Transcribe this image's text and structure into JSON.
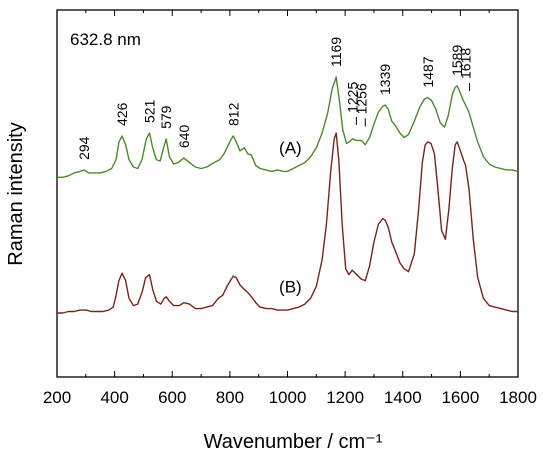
{
  "chart_data": {
    "type": "line",
    "corner_label": "632.8 nm",
    "xlabel": "Wavenumber / cm⁻¹",
    "ylabel": "Raman intensity",
    "xlim": [
      200,
      1800
    ],
    "x_ticks": [
      200,
      400,
      600,
      800,
      1000,
      1200,
      1400,
      1600,
      1800
    ],
    "y_ticks_shown": false,
    "grid": false,
    "series": [
      {
        "name": "(A)",
        "color": "#4a8a2a",
        "points": [
          [
            200,
            0.66
          ],
          [
            220,
            0.66
          ],
          [
            240,
            0.665
          ],
          [
            260,
            0.675
          ],
          [
            280,
            0.68
          ],
          [
            294,
            0.685
          ],
          [
            310,
            0.675
          ],
          [
            330,
            0.675
          ],
          [
            350,
            0.675
          ],
          [
            370,
            0.68
          ],
          [
            390,
            0.69
          ],
          [
            405,
            0.72
          ],
          [
            415,
            0.78
          ],
          [
            426,
            0.8
          ],
          [
            438,
            0.77
          ],
          [
            450,
            0.72
          ],
          [
            465,
            0.695
          ],
          [
            480,
            0.69
          ],
          [
            495,
            0.72
          ],
          [
            510,
            0.79
          ],
          [
            521,
            0.81
          ],
          [
            532,
            0.76
          ],
          [
            545,
            0.72
          ],
          [
            558,
            0.715
          ],
          [
            570,
            0.76
          ],
          [
            579,
            0.79
          ],
          [
            590,
            0.73
          ],
          [
            605,
            0.705
          ],
          [
            620,
            0.71
          ],
          [
            640,
            0.725
          ],
          [
            660,
            0.71
          ],
          [
            680,
            0.695
          ],
          [
            700,
            0.69
          ],
          [
            720,
            0.695
          ],
          [
            745,
            0.71
          ],
          [
            765,
            0.72
          ],
          [
            780,
            0.74
          ],
          [
            795,
            0.77
          ],
          [
            805,
            0.79
          ],
          [
            812,
            0.8
          ],
          [
            822,
            0.78
          ],
          [
            835,
            0.75
          ],
          [
            850,
            0.76
          ],
          [
            862,
            0.74
          ],
          [
            875,
            0.735
          ],
          [
            890,
            0.7
          ],
          [
            905,
            0.69
          ],
          [
            925,
            0.685
          ],
          [
            945,
            0.68
          ],
          [
            965,
            0.685
          ],
          [
            985,
            0.68
          ],
          [
            1000,
            0.68
          ],
          [
            1020,
            0.69
          ],
          [
            1040,
            0.7
          ],
          [
            1060,
            0.71
          ],
          [
            1080,
            0.73
          ],
          [
            1100,
            0.76
          ],
          [
            1120,
            0.81
          ],
          [
            1140,
            0.88
          ],
          [
            1155,
            0.96
          ],
          [
            1169,
            1.0
          ],
          [
            1180,
            0.92
          ],
          [
            1192,
            0.82
          ],
          [
            1205,
            0.775
          ],
          [
            1215,
            0.78
          ],
          [
            1225,
            0.79
          ],
          [
            1240,
            0.785
          ],
          [
            1256,
            0.785
          ],
          [
            1270,
            0.77
          ],
          [
            1285,
            0.795
          ],
          [
            1300,
            0.84
          ],
          [
            1315,
            0.88
          ],
          [
            1330,
            0.9
          ],
          [
            1339,
            0.905
          ],
          [
            1350,
            0.89
          ],
          [
            1362,
            0.85
          ],
          [
            1375,
            0.835
          ],
          [
            1390,
            0.81
          ],
          [
            1405,
            0.795
          ],
          [
            1420,
            0.805
          ],
          [
            1440,
            0.85
          ],
          [
            1460,
            0.9
          ],
          [
            1475,
            0.925
          ],
          [
            1487,
            0.93
          ],
          [
            1500,
            0.92
          ],
          [
            1515,
            0.89
          ],
          [
            1530,
            0.845
          ],
          [
            1545,
            0.83
          ],
          [
            1558,
            0.87
          ],
          [
            1572,
            0.94
          ],
          [
            1582,
            0.965
          ],
          [
            1589,
            0.97
          ],
          [
            1600,
            0.945
          ],
          [
            1610,
            0.92
          ],
          [
            1618,
            0.905
          ],
          [
            1630,
            0.88
          ],
          [
            1645,
            0.83
          ],
          [
            1660,
            0.78
          ],
          [
            1680,
            0.73
          ],
          [
            1700,
            0.705
          ],
          [
            1720,
            0.695
          ],
          [
            1740,
            0.69
          ],
          [
            1760,
            0.685
          ],
          [
            1780,
            0.685
          ],
          [
            1800,
            0.68
          ]
        ]
      },
      {
        "name": "(B)",
        "color": "#7a2418",
        "points": [
          [
            200,
            0.2
          ],
          [
            220,
            0.2
          ],
          [
            240,
            0.205
          ],
          [
            260,
            0.205
          ],
          [
            280,
            0.21
          ],
          [
            300,
            0.21
          ],
          [
            320,
            0.205
          ],
          [
            340,
            0.205
          ],
          [
            360,
            0.205
          ],
          [
            380,
            0.21
          ],
          [
            395,
            0.22
          ],
          [
            405,
            0.26
          ],
          [
            415,
            0.31
          ],
          [
            426,
            0.335
          ],
          [
            438,
            0.31
          ],
          [
            450,
            0.25
          ],
          [
            465,
            0.225
          ],
          [
            480,
            0.23
          ],
          [
            495,
            0.27
          ],
          [
            508,
            0.32
          ],
          [
            521,
            0.33
          ],
          [
            532,
            0.28
          ],
          [
            545,
            0.24
          ],
          [
            560,
            0.23
          ],
          [
            572,
            0.25
          ],
          [
            579,
            0.255
          ],
          [
            590,
            0.24
          ],
          [
            605,
            0.225
          ],
          [
            625,
            0.225
          ],
          [
            640,
            0.235
          ],
          [
            660,
            0.23
          ],
          [
            680,
            0.215
          ],
          [
            700,
            0.215
          ],
          [
            720,
            0.22
          ],
          [
            740,
            0.225
          ],
          [
            760,
            0.25
          ],
          [
            775,
            0.26
          ],
          [
            790,
            0.29
          ],
          [
            805,
            0.315
          ],
          [
            812,
            0.325
          ],
          [
            822,
            0.32
          ],
          [
            835,
            0.295
          ],
          [
            850,
            0.28
          ],
          [
            862,
            0.27
          ],
          [
            875,
            0.255
          ],
          [
            890,
            0.235
          ],
          [
            905,
            0.22
          ],
          [
            925,
            0.215
          ],
          [
            945,
            0.215
          ],
          [
            965,
            0.21
          ],
          [
            985,
            0.21
          ],
          [
            1000,
            0.21
          ],
          [
            1020,
            0.215
          ],
          [
            1040,
            0.22
          ],
          [
            1060,
            0.23
          ],
          [
            1080,
            0.25
          ],
          [
            1100,
            0.29
          ],
          [
            1120,
            0.38
          ],
          [
            1135,
            0.5
          ],
          [
            1150,
            0.68
          ],
          [
            1162,
            0.79
          ],
          [
            1169,
            0.81
          ],
          [
            1178,
            0.72
          ],
          [
            1190,
            0.5
          ],
          [
            1202,
            0.35
          ],
          [
            1213,
            0.33
          ],
          [
            1225,
            0.345
          ],
          [
            1240,
            0.33
          ],
          [
            1256,
            0.315
          ],
          [
            1270,
            0.31
          ],
          [
            1285,
            0.36
          ],
          [
            1300,
            0.44
          ],
          [
            1315,
            0.5
          ],
          [
            1330,
            0.52
          ],
          [
            1339,
            0.515
          ],
          [
            1350,
            0.49
          ],
          [
            1362,
            0.44
          ],
          [
            1375,
            0.41
          ],
          [
            1390,
            0.37
          ],
          [
            1405,
            0.35
          ],
          [
            1420,
            0.34
          ],
          [
            1440,
            0.4
          ],
          [
            1455,
            0.55
          ],
          [
            1468,
            0.71
          ],
          [
            1478,
            0.77
          ],
          [
            1487,
            0.78
          ],
          [
            1498,
            0.775
          ],
          [
            1510,
            0.74
          ],
          [
            1522,
            0.62
          ],
          [
            1535,
            0.48
          ],
          [
            1548,
            0.45
          ],
          [
            1560,
            0.55
          ],
          [
            1572,
            0.69
          ],
          [
            1582,
            0.77
          ],
          [
            1589,
            0.78
          ],
          [
            1600,
            0.75
          ],
          [
            1610,
            0.72
          ],
          [
            1618,
            0.7
          ],
          [
            1630,
            0.62
          ],
          [
            1645,
            0.45
          ],
          [
            1660,
            0.32
          ],
          [
            1680,
            0.25
          ],
          [
            1700,
            0.225
          ],
          [
            1720,
            0.22
          ],
          [
            1740,
            0.215
          ],
          [
            1760,
            0.21
          ],
          [
            1780,
            0.205
          ],
          [
            1800,
            0.205
          ]
        ]
      }
    ],
    "peak_labels": [
      {
        "text": "294",
        "x": 294,
        "dash": false
      },
      {
        "text": "426",
        "x": 426,
        "dash": false
      },
      {
        "text": "521",
        "x": 521,
        "dash": false
      },
      {
        "text": "579",
        "x": 579,
        "dash": false
      },
      {
        "text": "640",
        "x": 640,
        "dash": false
      },
      {
        "text": "812",
        "x": 812,
        "dash": false
      },
      {
        "text": "1169",
        "x": 1169,
        "dash": false
      },
      {
        "text": "1225",
        "x": 1225,
        "dash": true
      },
      {
        "text": "1256",
        "x": 1256,
        "dash": true
      },
      {
        "text": "1339",
        "x": 1339,
        "dash": false
      },
      {
        "text": "1487",
        "x": 1487,
        "dash": false
      },
      {
        "text": "1589",
        "x": 1589,
        "dash": false
      },
      {
        "text": "1618",
        "x": 1618,
        "dash": true
      }
    ]
  }
}
